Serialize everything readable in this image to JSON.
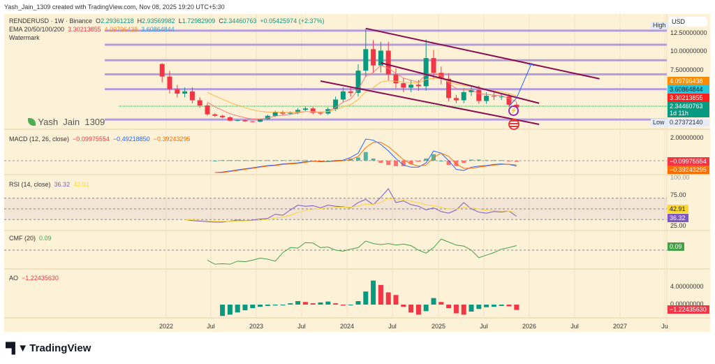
{
  "header": {
    "attribution": "Yash_Jain_1309 created with TradingView.com, Nov 08, 2025 19:20 UTC+5:30"
  },
  "legend": {
    "symbol": "RENDERUSD · 1W · Binance",
    "o_label": "O",
    "o": "2.29361218",
    "h_label": "H",
    "h": "2.93569982",
    "l_label": "L",
    "l": "1.72982909",
    "c_label": "C",
    "c": "2.34460763",
    "change": "+0.05425974 (+2.37%)",
    "ema_label": "EMA 20/50/100/200",
    "ema_values": [
      "3.30213855",
      "4.09796438",
      "3.60864844"
    ],
    "watermark_label": "Watermark"
  },
  "watermark": {
    "text": "Yash_Jain_1309",
    "display": "Yash  Jain  1309"
  },
  "panes": {
    "macd": {
      "label": "MACD (12, 26, close)",
      "values": [
        "−0.09975554",
        "−0.49218850",
        "−0.39243295"
      ]
    },
    "rsi": {
      "label": "RSI (14, close)",
      "values": [
        "36.32",
        "42.91"
      ]
    },
    "cmf": {
      "label": "CMF (20)",
      "value": "0.09"
    },
    "ao": {
      "label": "AO",
      "value": "−1.22435630"
    }
  },
  "price_axis": {
    "currency": "USD",
    "ticks": [
      "12.50000000",
      "10.00000000",
      "7.50000000"
    ],
    "high_tag": "High",
    "low_tag": "Low",
    "low_value": "0.27372140",
    "badges": [
      {
        "value": "4.09796438",
        "color": "#ff8c00"
      },
      {
        "value": "3.60864844",
        "color": "#26c6da"
      },
      {
        "value": "3.30213855",
        "color": "#ff1e1e"
      },
      {
        "value": "2.34460763",
        "sub": "1d 11h",
        "color": "#089981"
      }
    ]
  },
  "macd_axis": {
    "tick": "2.00000000",
    "badges": [
      {
        "value": "−0.09975554",
        "color": "#f23645"
      },
      {
        "value": "−0.39243295",
        "color": "#ff6d00"
      }
    ]
  },
  "rsi_axis": {
    "ticks": [
      "100.00",
      "75.00",
      "25.00"
    ],
    "badges": [
      {
        "value": "42.91",
        "color": "#fdd835"
      },
      {
        "value": "36.32",
        "color": "#7e57c2"
      }
    ]
  },
  "cmf_axis": {
    "badge": {
      "value": "0.09",
      "color": "#43a047"
    }
  },
  "ao_axis": {
    "ticks": [
      "4.00000000",
      "0.00000000"
    ],
    "badge": {
      "value": "−1.22435630",
      "color": "#f23645"
    }
  },
  "time_axis": [
    "2022",
    "Jul",
    "2023",
    "Jul",
    "2024",
    "Jul",
    "2025",
    "Jul",
    "2026",
    "Jul",
    "2027",
    "Ju"
  ],
  "footer": {
    "logo_text": "TradingView"
  },
  "chart_data": {
    "type": "candlestick",
    "interval": "1W (shown here monthly-approximated)",
    "start": "2021-12",
    "first_open": 8.2,
    "closes": [
      6.5,
      4.8,
      4.2,
      4.5,
      3.3,
      2.6,
      1.4,
      1.2,
      1.0,
      0.55,
      0.6,
      0.45,
      0.4,
      0.75,
      1.2,
      1.7,
      1.5,
      1.6,
      2.0,
      2.2,
      1.6,
      1.5,
      2.1,
      3.4,
      4.5,
      4.3,
      7.3,
      10.2,
      8.0,
      10.0,
      6.8,
      5.6,
      5.0,
      5.4,
      5.2,
      9.0,
      7.0,
      6.2,
      3.6,
      3.3,
      4.4,
      4.7,
      3.2,
      3.9,
      3.8,
      3.8,
      2.7,
      2.34
    ],
    "notable_highs": {
      "2024-03": 12.93,
      "2024-11": 11.5,
      "2021-12": 8.3
    },
    "ylim": [
      0,
      13.5
    ],
    "colors": {
      "up": "#089981",
      "down": "#f23645",
      "ema20": "#f77c80",
      "ema50": "#ffb74d",
      "level": "#b39ddb",
      "support": "#81c784",
      "trendline": "#880e4f",
      "projection": "#2962ff"
    },
    "horizontal_levels": [
      12.7,
      10.8,
      8.7,
      6.8,
      4.8,
      0.7
    ],
    "support_level": 2.5,
    "trendlines": [
      {
        "from": [
          "2024-03",
          13.0
        ],
        "to": [
          "2026-10",
          6.2
        ]
      },
      {
        "from": [
          "2024-05",
          8.35
        ],
        "to": [
          "2026-02",
          2.9
        ]
      },
      {
        "from": [
          "2023-09",
          5.9
        ],
        "to": [
          "2026-02",
          0.05
        ]
      }
    ],
    "projection": [
      [
        "2025-10",
        2.5
      ],
      [
        "2025-11",
        3.6
      ],
      [
        "2026-01",
        8.3
      ]
    ],
    "macd": {
      "start": "2022-07",
      "ylim": [
        -2,
        2.5
      ],
      "macd": [
        -1.1,
        -1.05,
        -0.95,
        -0.85,
        -0.75,
        -0.65,
        -0.55,
        -0.45,
        -0.4,
        -0.3,
        -0.25,
        -0.2,
        -0.1,
        -0.05,
        -0.1,
        -0.1,
        0.0,
        0.05,
        0.3,
        0.7,
        2.0,
        1.9,
        1.5,
        0.9,
        0.2,
        -0.4,
        -0.6,
        -0.6,
        -0.2,
        0.9,
        0.7,
        0.0,
        -0.8,
        -0.9,
        -0.6,
        -0.5,
        -0.45,
        -0.35,
        -0.3,
        -0.35,
        -0.49
      ],
      "signal": [
        -1.1,
        -1.1,
        -1.0,
        -0.9,
        -0.8,
        -0.7,
        -0.6,
        -0.5,
        -0.45,
        -0.35,
        -0.3,
        -0.25,
        -0.15,
        -0.05,
        -0.05,
        -0.1,
        -0.05,
        0.0,
        0.1,
        0.4,
        1.2,
        1.7,
        1.7,
        1.3,
        0.7,
        0.1,
        -0.3,
        -0.5,
        -0.4,
        0.3,
        0.7,
        0.4,
        -0.3,
        -0.7,
        -0.7,
        -0.6,
        -0.5,
        -0.4,
        -0.35,
        -0.33,
        -0.39
      ]
    },
    "rsi": {
      "start": "2022-03",
      "bands": [
        70,
        50,
        30
      ],
      "rsi": [
        30,
        28,
        27,
        26,
        25,
        25,
        27,
        29,
        28,
        29,
        31,
        32,
        40,
        38,
        48,
        57,
        55,
        56,
        52,
        57,
        55,
        54,
        52,
        62,
        68,
        58,
        72,
        88,
        62,
        65,
        58,
        55,
        48,
        52,
        45,
        42,
        48,
        62,
        50,
        44,
        42,
        45,
        44,
        46,
        36
      ]
    },
    "cmf": {
      "start": "2022-06",
      "cmf": [
        -0.2,
        -0.28,
        -0.27,
        -0.28,
        -0.22,
        -0.23,
        -0.2,
        -0.16,
        -0.18,
        -0.22,
        -0.05,
        0.05,
        0.04,
        0.15,
        0.14,
        0.05,
        0.06,
        0.0,
        -0.02,
        0.02,
        0.05,
        0.18,
        0.13,
        0.11,
        0.13,
        0.1,
        0.12,
        0.09,
        0.0,
        -0.06,
        0.05,
        0.22,
        0.16,
        0.1,
        0.08,
        0.0,
        -0.15,
        -0.1,
        -0.05,
        0.02,
        0.05,
        0.09
      ]
    },
    "ao": {
      "start": "2022-08",
      "ao": [
        -2.6,
        -2.3,
        -1.8,
        -1.3,
        -0.8,
        -0.5,
        -0.3,
        -0.2,
        -0.1,
        0.3,
        0.8,
        0.6,
        0.3,
        0.5,
        0.7,
        0.3,
        -0.2,
        0.0,
        0.8,
        3.0,
        5.5,
        4.5,
        2.8,
        2.2,
        -0.5,
        -1.8,
        -2.3,
        -1.5,
        1.5,
        0.6,
        -0.8,
        -2.0,
        -2.3,
        -1.6,
        -1.0,
        -0.6,
        -0.5,
        -0.3,
        -0.4,
        -1.22
      ]
    }
  }
}
